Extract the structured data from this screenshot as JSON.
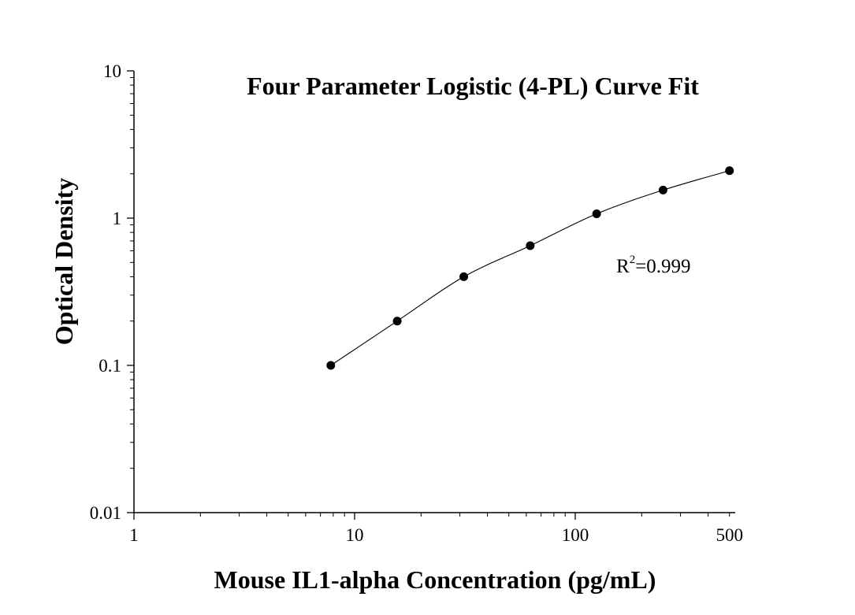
{
  "chart_data": {
    "type": "scatter",
    "title": "Four Parameter Logistic (4-PL) Curve Fit",
    "xlabel": "Mouse IL1-alpha Concentration (pg/mL)",
    "ylabel": "Optical Density",
    "x_scale": "log",
    "y_scale": "log",
    "xlim": [
      1,
      600
    ],
    "ylim": [
      0.01,
      10
    ],
    "x_ticks": [
      {
        "value": 1,
        "label": "1"
      },
      {
        "value": 10,
        "label": "10"
      },
      {
        "value": 100,
        "label": "100"
      },
      {
        "value": 500,
        "label": "500"
      }
    ],
    "y_ticks": [
      {
        "value": 10,
        "label": "10"
      },
      {
        "value": 1,
        "label": "1"
      },
      {
        "value": 0.1,
        "label": "0.1"
      },
      {
        "value": 0.01,
        "label": "0.01"
      }
    ],
    "grid": false,
    "points": {
      "x": [
        7.8,
        15.6,
        31.25,
        62.5,
        125,
        250,
        500
      ],
      "y": [
        0.1,
        0.2,
        0.4,
        0.65,
        1.07,
        1.55,
        2.1
      ]
    },
    "fit_curve": "4-PL",
    "annotation": {
      "base": "R",
      "sup": "2",
      "rest": "=0.999"
    },
    "colors": {
      "points": "#000000",
      "curve": "#000000",
      "axes": "#000000"
    }
  }
}
